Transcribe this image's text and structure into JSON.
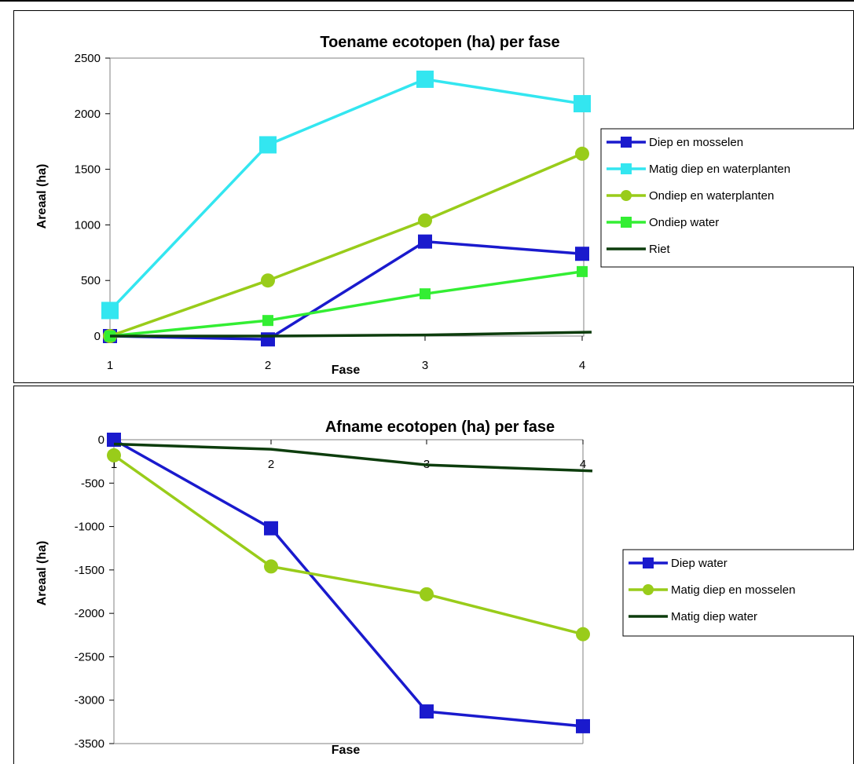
{
  "chart_data": [
    {
      "type": "line",
      "title": "Toename ecotopen (ha) per fase",
      "xlabel": "Fase",
      "ylabel": "Areaal (ha)",
      "categories": [
        "1",
        "2",
        "3",
        "4"
      ],
      "ylim": [
        0,
        2500
      ],
      "yticks": [
        "0",
        "500",
        "1000",
        "1500",
        "2000",
        "2500"
      ],
      "legend_position": "right",
      "series": [
        {
          "name": "Diep en mosselen",
          "color": "#1a1acd",
          "marker": "square",
          "values": [
            0,
            -30,
            850,
            740
          ]
        },
        {
          "name": "Matig diep en waterplanten",
          "color": "#33e6f0",
          "marker": "square",
          "values": [
            230,
            1720,
            2310,
            2090
          ]
        },
        {
          "name": "Ondiep en waterplanten",
          "color": "#99cc1a",
          "marker": "circle",
          "values": [
            0,
            500,
            1040,
            1640
          ]
        },
        {
          "name": "Ondiep water",
          "color": "#33ee33",
          "marker": "square",
          "values": [
            0,
            140,
            380,
            580
          ]
        },
        {
          "name": "Riet",
          "color": "#0d3d0d",
          "marker": "none",
          "values": [
            0,
            0,
            10,
            35
          ]
        }
      ]
    },
    {
      "type": "line",
      "title": "Afname ecotopen (ha) per fase",
      "xlabel": "Fase",
      "ylabel": "Areaal (ha)",
      "categories": [
        "1",
        "2",
        "3",
        "4"
      ],
      "ylim": [
        -3500,
        0
      ],
      "yticks": [
        "0",
        "-500",
        "-1000",
        "-1500",
        "-2000",
        "-2500",
        "-3000",
        "-3500"
      ],
      "legend_position": "right",
      "series": [
        {
          "name": "Diep water",
          "color": "#1a1acd",
          "marker": "square",
          "values": [
            0,
            -1020,
            -3130,
            -3300
          ]
        },
        {
          "name": "Matig diep en mosselen",
          "color": "#99cc1a",
          "marker": "circle",
          "values": [
            -180,
            -1460,
            -1780,
            -2240
          ]
        },
        {
          "name": "Matig diep water",
          "color": "#0d3d0d",
          "marker": "none",
          "values": [
            -50,
            -110,
            -290,
            -360
          ]
        }
      ]
    }
  ]
}
